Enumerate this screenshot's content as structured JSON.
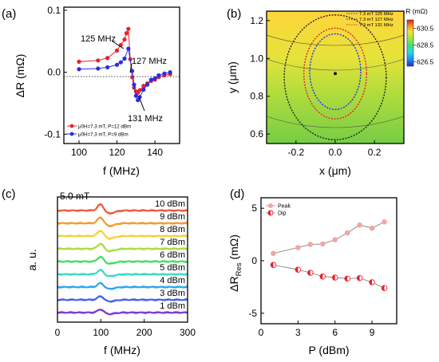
{
  "panels": [
    {
      "id": "a",
      "label": "(a)"
    },
    {
      "id": "b",
      "label": "(b)"
    },
    {
      "id": "c",
      "label": "(c)"
    },
    {
      "id": "d",
      "label": "(d)"
    }
  ],
  "chart_data": [
    {
      "panel": "(a)",
      "type": "line",
      "xlabel": "f (MHz)",
      "ylabel": "ΔR (mΩ)",
      "xlim": [
        92,
        153
      ],
      "ylim": [
        -0.115,
        0.105
      ],
      "xticks": [
        100,
        120,
        140
      ],
      "yticks": [
        -0.1,
        0.0,
        0.1
      ],
      "ytick_labels": [
        "-0.1",
        "0.0",
        "0.1"
      ],
      "zero_line": "dotted",
      "legend_position": "bottom-left",
      "series": [
        {
          "name": "μ0H=7.3 mT, P=12 dBm",
          "color": "#e8222c",
          "x": [
            100,
            110,
            115,
            120,
            122,
            124,
            125,
            126,
            127,
            128,
            129,
            130,
            131,
            132,
            134,
            136,
            138,
            140,
            142,
            145,
            148
          ],
          "y": [
            0.017,
            0.019,
            0.023,
            0.035,
            0.044,
            0.053,
            0.063,
            0.07,
            0.021,
            -0.008,
            -0.025,
            -0.031,
            -0.033,
            -0.029,
            -0.022,
            -0.018,
            -0.014,
            -0.012,
            -0.008,
            -0.005,
            -0.003
          ]
        },
        {
          "name": "μ0H=7.3 mT, P=9 dBm",
          "color": "#2a2ee0",
          "x": [
            100,
            110,
            115,
            120,
            122,
            124,
            126,
            128,
            129,
            130,
            131,
            132,
            134,
            136,
            138,
            140,
            142,
            145,
            148
          ],
          "y": [
            0.005,
            0.006,
            0.008,
            0.012,
            0.016,
            0.022,
            0.038,
            0.002,
            -0.02,
            -0.038,
            -0.045,
            -0.04,
            -0.028,
            -0.02,
            -0.012,
            -0.01,
            -0.005,
            -0.002,
            0.0
          ]
        }
      ],
      "annotations": [
        {
          "text": "125 MHz",
          "x": 125,
          "y": 0.053
        },
        {
          "text": "127 MHz",
          "x": 127,
          "y": 0.0
        },
        {
          "text": "131 MHz",
          "x": 131,
          "y": -0.045
        }
      ]
    },
    {
      "panel": "(b)",
      "type": "heatmap",
      "xlabel": "x (μm)",
      "ylabel": "y (μm)",
      "xlim": [
        -0.35,
        0.35
      ],
      "ylim": [
        0.55,
        1.25
      ],
      "xticks": [
        -0.2,
        0.0,
        0.2
      ],
      "xtick_labels": [
        "-0.2",
        "0.0",
        "0.2"
      ],
      "yticks": [
        0.6,
        0.8,
        1.0,
        1.2
      ],
      "yticks_labels": [
        "0.6",
        "0.8",
        "1.0",
        "1.2"
      ],
      "colorbar": {
        "title": "R (mΩ)",
        "min": 626.0,
        "max": 631.5,
        "ticks": [
          626.5,
          628.5,
          630.5
        ],
        "tick_labels": [
          "626.5",
          "628.5",
          "630.5"
        ]
      },
      "contours": [
        {
          "name": "7.3 mT 125 MHz",
          "color": "#2a2ee0",
          "cx": 0.0,
          "cy": 0.93,
          "rx": 0.13,
          "ry": 0.2
        },
        {
          "name": "7.3 mT 127 MHz",
          "color": "#222222",
          "cx": 0.0,
          "cy": 0.9,
          "rx": 0.26,
          "ry": 0.33
        },
        {
          "name": "7.3 mT 131 MHz",
          "color": "#e8222c",
          "cx": 0.0,
          "cy": 0.92,
          "rx": 0.16,
          "ry": 0.24
        }
      ],
      "marker": {
        "x": 0.0,
        "y": 0.92
      },
      "legend_position": "top-right"
    },
    {
      "panel": "(c)",
      "type": "line",
      "xlabel": "f (MHz)",
      "ylabel": "a. u.",
      "xlim": [
        0,
        300
      ],
      "xticks": [
        0,
        100,
        200,
        300
      ],
      "field_label": "5.0 mT",
      "series": [
        {
          "name": "10 dBm",
          "color": "#ef5a3a"
        },
        {
          "name": "9 dBm",
          "color": "#f39a2e"
        },
        {
          "name": "8 dBm",
          "color": "#f2d23a"
        },
        {
          "name": "7 dBm",
          "color": "#a6e039"
        },
        {
          "name": "6 dBm",
          "color": "#44de5f"
        },
        {
          "name": "5 dBm",
          "color": "#35dcc0"
        },
        {
          "name": "4 dBm",
          "color": "#2aa6f0"
        },
        {
          "name": "3 dBm",
          "color": "#4560e8"
        },
        {
          "name": "1 dBm",
          "color": "#7a3ad6"
        }
      ],
      "resonance_center": 100
    },
    {
      "panel": "(d)",
      "type": "line",
      "xlabel": "P (dBm)",
      "ylabel": "ΔR",
      "ylabel_sub": "Res",
      "ylabel_unit": " (mΩ)",
      "xlim": [
        0,
        11
      ],
      "ylim": [
        -6,
        6
      ],
      "xticks": [
        0,
        3,
        6,
        9
      ],
      "yticks": [
        -5,
        0,
        5
      ],
      "legend_position": "top-left",
      "series": [
        {
          "name": "Peak",
          "color": "#f2a6a6",
          "x": [
            1,
            3,
            4,
            5,
            6,
            7,
            8,
            9,
            10
          ],
          "y": [
            0.7,
            1.25,
            1.55,
            1.6,
            2.0,
            2.65,
            3.4,
            3.1,
            3.7
          ]
        },
        {
          "name": "Dip",
          "color": "#e8222c",
          "x": [
            1,
            3,
            4,
            5,
            6,
            7,
            8,
            9,
            10
          ],
          "y": [
            -0.4,
            -0.85,
            -1.15,
            -1.5,
            -1.6,
            -1.7,
            -1.65,
            -2.05,
            -2.6
          ]
        }
      ]
    }
  ]
}
